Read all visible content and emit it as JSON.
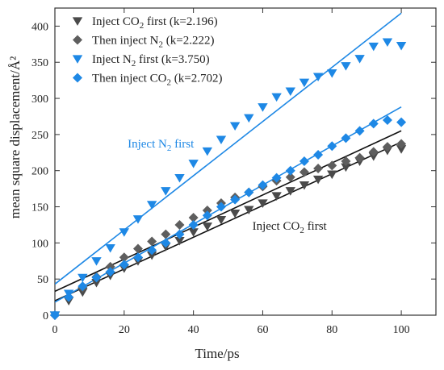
{
  "chart_data": {
    "type": "scatter",
    "xlabel": "Time/ps",
    "ylabel": "mean square displacement/Å²",
    "xlim": [
      0,
      110
    ],
    "ylim": [
      0,
      425
    ],
    "xticks": [
      0,
      20,
      40,
      60,
      80,
      100
    ],
    "yticks": [
      0,
      50,
      100,
      150,
      200,
      250,
      300,
      350,
      400
    ],
    "grid": false,
    "legend_position": "top-left",
    "series": [
      {
        "name": "Inject CO2 first (k=2.196)",
        "legend_parts": [
          "Inject CO",
          "2",
          " first (k=2.196)"
        ],
        "color": "#4a4a4a",
        "marker": "triangle-down",
        "x": [
          0,
          4,
          8,
          12,
          16,
          20,
          24,
          28,
          32,
          36,
          40,
          44,
          48,
          52,
          56,
          60,
          64,
          68,
          72,
          76,
          80,
          84,
          88,
          92,
          96,
          100
        ],
        "y": [
          0,
          20,
          32,
          45,
          55,
          65,
          75,
          83,
          95,
          103,
          115,
          123,
          132,
          141,
          146,
          155,
          165,
          172,
          180,
          188,
          195,
          205,
          213,
          220,
          228,
          230
        ],
        "fit": {
          "slope": 2.196,
          "intercept": 20
        }
      },
      {
        "name": "Then inject N2 (k=2.222)",
        "legend_parts": [
          "Then inject N",
          "2",
          " (k=2.222)"
        ],
        "color": "#5e5e5e",
        "marker": "diamond",
        "x": [
          0,
          4,
          8,
          12,
          16,
          20,
          24,
          28,
          32,
          36,
          40,
          44,
          48,
          52,
          56,
          60,
          64,
          68,
          72,
          76,
          80,
          84,
          88,
          92,
          96,
          100
        ],
        "y": [
          0,
          25,
          38,
          53,
          67,
          80,
          92,
          102,
          112,
          125,
          135,
          145,
          155,
          163,
          170,
          178,
          186,
          191,
          198,
          203,
          207,
          213,
          218,
          226,
          233,
          237
        ],
        "fit": {
          "slope": 2.222,
          "intercept": 33
        }
      },
      {
        "name": "Inject N2 first (k=3.750)",
        "legend_parts": [
          "Inject N",
          "2",
          " first (k=3.750)"
        ],
        "color": "#1e88e5",
        "marker": "triangle-down",
        "x": [
          0,
          4,
          8,
          12,
          16,
          20,
          24,
          28,
          32,
          36,
          40,
          44,
          48,
          52,
          56,
          60,
          64,
          68,
          72,
          76,
          80,
          84,
          88,
          92,
          96,
          100
        ],
        "y": [
          0,
          30,
          52,
          75,
          93,
          115,
          133,
          153,
          172,
          190,
          210,
          227,
          243,
          262,
          273,
          288,
          302,
          310,
          322,
          330,
          335,
          345,
          355,
          372,
          378,
          373
        ],
        "fit": {
          "slope": 3.75,
          "intercept": 43
        }
      },
      {
        "name": "Then inject CO2 (k=2.702)",
        "legend_parts": [
          "Then inject CO",
          "2",
          " (k=2.702)"
        ],
        "color": "#1e88e5",
        "marker": "diamond",
        "x": [
          0,
          4,
          8,
          12,
          16,
          20,
          24,
          28,
          32,
          36,
          40,
          44,
          48,
          52,
          56,
          60,
          64,
          68,
          72,
          76,
          80,
          84,
          88,
          92,
          96,
          100
        ],
        "y": [
          0,
          25,
          40,
          52,
          60,
          70,
          80,
          90,
          100,
          112,
          125,
          138,
          150,
          160,
          170,
          180,
          190,
          200,
          213,
          222,
          234,
          245,
          255,
          265,
          270,
          267
        ],
        "fit": {
          "slope": 2.702,
          "intercept": 18
        }
      }
    ],
    "annotations": [
      {
        "parts": [
          "Inject N",
          "2",
          " first"
        ],
        "color": "#1e88e5",
        "x": 21,
        "y": 232
      },
      {
        "parts": [
          "Inject CO",
          "2",
          " first"
        ],
        "color": "#222222",
        "x": 57,
        "y": 118
      }
    ]
  }
}
